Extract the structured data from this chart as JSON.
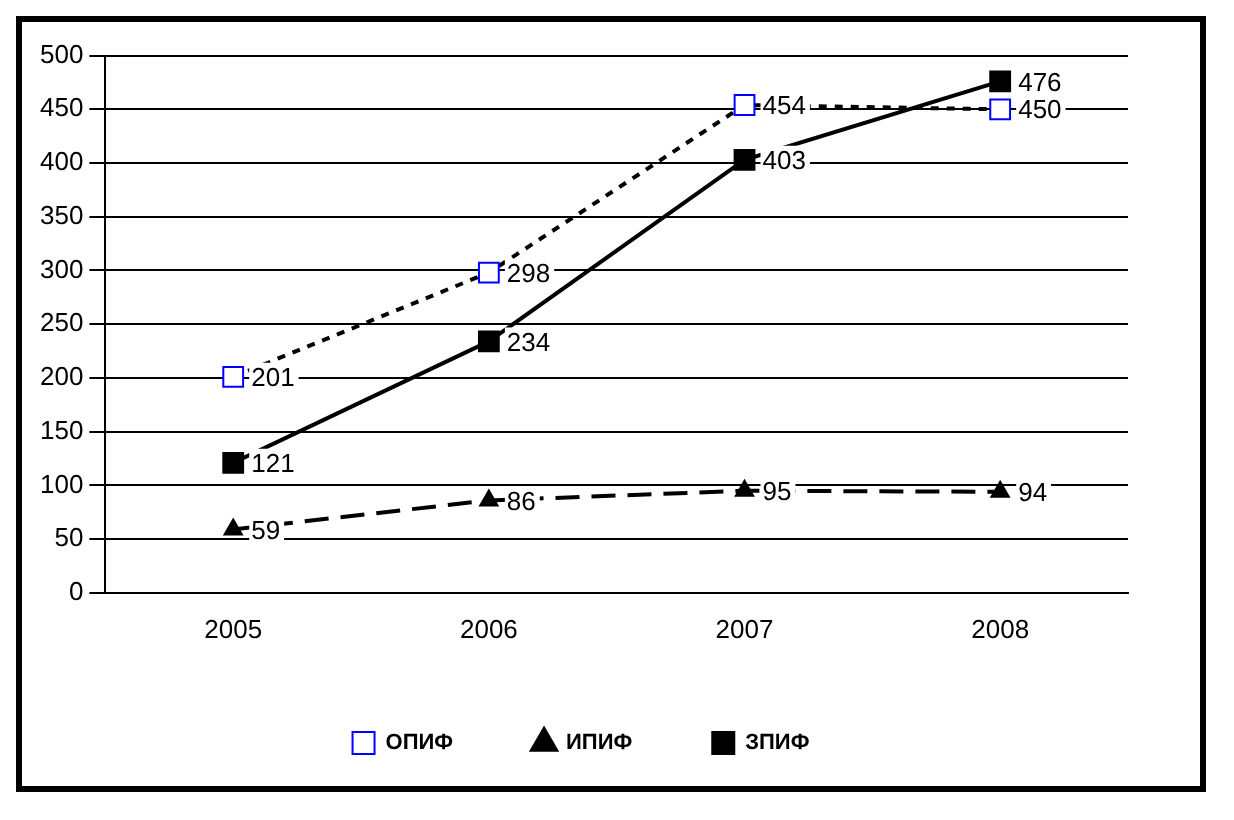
{
  "chart_data": {
    "type": "line",
    "categories": [
      "2005",
      "2006",
      "2007",
      "2008"
    ],
    "series": [
      {
        "name": "ОПИФ",
        "color": "#0000ff",
        "values": [
          201,
          298,
          454,
          450
        ],
        "marker": "square",
        "line_style": "dotted"
      },
      {
        "name": "ИПИФ",
        "color": "#000000",
        "values": [
          59,
          86,
          95,
          94
        ],
        "marker": "triangle",
        "line_style": "dashed"
      },
      {
        "name": "ЗПИФ",
        "color": "#000000",
        "values": [
          121,
          234,
          403,
          476
        ],
        "marker": "square",
        "line_style": "solid"
      }
    ],
    "ylim": [
      0,
      500
    ],
    "yticks": [
      0,
      50,
      100,
      150,
      200,
      250,
      300,
      350,
      400,
      450,
      500
    ],
    "grid": "y",
    "legend": "bottom",
    "data_labels": true
  }
}
